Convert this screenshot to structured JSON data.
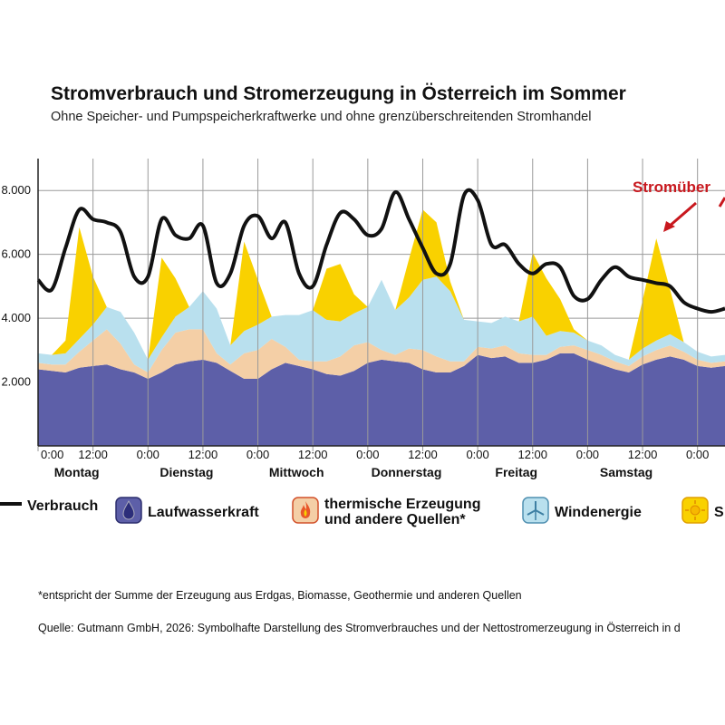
{
  "chart_data": {
    "type": "area",
    "title": "Stromverbrauch und Stromerzeugung in Österreich im Sommer",
    "subtitle": "Ohne Speicher- und Pumpspeicherkraftwerke und ohne grenzüberschreitenden Stromhandel",
    "y_ticks": [
      "2.000",
      "4.000",
      "6.000",
      "8.000"
    ],
    "ylim": [
      0,
      9000
    ],
    "x_ticks": [
      "0:00",
      "12:00",
      "0:00",
      "12:00",
      "0:00",
      "12:00",
      "0:00",
      "12:00",
      "0:00",
      "12:00",
      "0:00",
      "12:00",
      "0:00"
    ],
    "days": [
      "Montag",
      "Dienstag",
      "Mittwoch",
      "Donnerstag",
      "Freitag",
      "Samstag"
    ],
    "x": [
      0,
      3,
      6,
      9,
      12,
      15,
      18,
      21,
      24,
      27,
      30,
      33,
      36,
      39,
      42,
      45,
      48,
      51,
      54,
      57,
      60,
      63,
      66,
      69,
      72,
      75,
      78,
      81,
      84,
      87,
      90,
      93,
      96,
      99,
      102,
      105,
      108,
      111,
      114,
      117,
      120,
      123,
      126,
      129,
      132,
      135,
      138,
      141,
      144,
      147,
      150
    ],
    "series": [
      {
        "name": "Laufwasserkraft",
        "color": "#5d5fa8",
        "values": [
          2400,
          2350,
          2300,
          2450,
          2500,
          2550,
          2400,
          2300,
          2100,
          2300,
          2550,
          2650,
          2700,
          2600,
          2350,
          2100,
          2100,
          2400,
          2600,
          2500,
          2400,
          2250,
          2200,
          2350,
          2600,
          2700,
          2650,
          2600,
          2400,
          2300,
          2300,
          2500,
          2850,
          2750,
          2800,
          2600,
          2600,
          2700,
          2900,
          2900,
          2700,
          2550,
          2400,
          2300,
          2550,
          2700,
          2800,
          2700,
          2500,
          2450,
          2500
        ]
      },
      {
        "name": "thermische Erzeugung und andere Quellen",
        "color": "#f4cfa6",
        "values": [
          200,
          200,
          250,
          500,
          800,
          1100,
          800,
          250,
          200,
          700,
          1000,
          1000,
          950,
          300,
          200,
          800,
          900,
          950,
          500,
          200,
          250,
          400,
          600,
          800,
          650,
          300,
          200,
          450,
          600,
          500,
          350,
          150,
          250,
          300,
          350,
          300,
          250,
          150,
          200,
          250,
          300,
          300,
          250,
          200,
          250,
          300,
          350,
          250,
          200,
          150,
          150
        ]
      },
      {
        "name": "Windenergie",
        "color": "#b9e0ee",
        "values": [
          300,
          300,
          350,
          400,
          500,
          700,
          1000,
          1000,
          400,
          400,
          500,
          700,
          1200,
          1400,
          600,
          700,
          800,
          700,
          1000,
          1400,
          1600,
          1300,
          1100,
          1000,
          1100,
          2200,
          1400,
          1600,
          2200,
          2500,
          2200,
          1300,
          800,
          800,
          900,
          1000,
          1200,
          600,
          500,
          400,
          300,
          300,
          200,
          200,
          250,
          300,
          350,
          300,
          250,
          200,
          200
        ]
      },
      {
        "name": "Sonnenenergie",
        "color": "#f9d100",
        "values": [
          0,
          0,
          400,
          3500,
          1500,
          0,
          0,
          0,
          0,
          2500,
          1200,
          0,
          0,
          0,
          0,
          2800,
          1400,
          0,
          0,
          0,
          0,
          1600,
          1800,
          600,
          0,
          0,
          0,
          1200,
          2200,
          1700,
          300,
          0,
          0,
          0,
          0,
          0,
          2000,
          1800,
          1000,
          100,
          0,
          0,
          0,
          0,
          1500,
          3200,
          1400,
          0,
          0,
          0,
          0
        ]
      },
      {
        "name": "Verbrauch",
        "color": "#111111",
        "values": [
          5200,
          4900,
          6200,
          7400,
          7100,
          7000,
          6700,
          5300,
          5300,
          7100,
          6600,
          6500,
          6900,
          5100,
          5400,
          6900,
          7200,
          6500,
          7000,
          5400,
          5000,
          6300,
          7300,
          7100,
          6600,
          6800,
          7950,
          7100,
          6200,
          5400,
          5700,
          7850,
          7700,
          6300,
          6300,
          5700,
          5400,
          5700,
          5600,
          4700,
          4600,
          5200,
          5600,
          5300,
          5200,
          5100,
          5000,
          4500,
          4300,
          4200,
          4300
        ]
      }
    ],
    "annotation": "Stromüber"
  },
  "legend": {
    "verbrauch": "Verbrauch",
    "laufwasser": "Laufwasserkraft",
    "thermisch_1": "thermische Erzeugung",
    "thermisch_2": "und andere Quellen*",
    "wind": "Windenergie",
    "sonne": "S"
  },
  "footnote": "*entspricht der Summe der Erzeugung aus Erdgas, Biomasse, Geothermie und anderen Quellen",
  "source": "Quelle: Gutmann GmbH, 2026: Symbolhafte Darstellung des Stromverbrauches und der Nettostromerzeugung in Österreich in d"
}
